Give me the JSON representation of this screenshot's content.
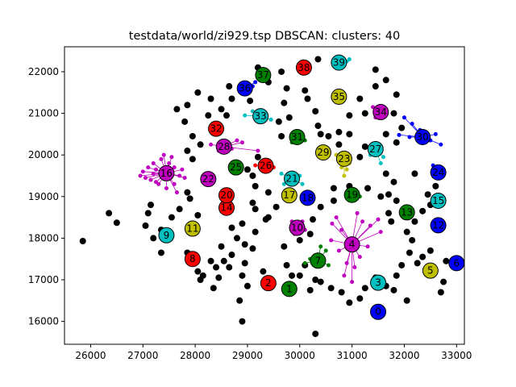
{
  "chart_data": {
    "type": "scatter",
    "title": "testdata/world/zi929.tsp DBSCAN: clusters: 40",
    "xlabel": "",
    "ylabel": "",
    "xlim": [
      25500,
      33150
    ],
    "ylim": [
      15450,
      22600
    ],
    "x_ticks": [
      26000,
      27000,
      28000,
      29000,
      30000,
      31000,
      32000,
      33000
    ],
    "y_ticks": [
      16000,
      17000,
      18000,
      19000,
      20000,
      21000,
      22000
    ],
    "grid": false,
    "legend": "none",
    "colors": {
      "noise": "#000000",
      "palette": [
        "#0000ff",
        "#008000",
        "#ff0000",
        "#00bfbf",
        "#bf00bf",
        "#bfbf00"
      ]
    },
    "clusters": [
      {
        "id": 0,
        "x": 31500,
        "y": 16230,
        "color": "#0000ff"
      },
      {
        "id": 1,
        "x": 29800,
        "y": 16780,
        "color": "#008000"
      },
      {
        "id": 2,
        "x": 29400,
        "y": 16920,
        "color": "#ff0000"
      },
      {
        "id": 3,
        "x": 31500,
        "y": 16930,
        "color": "#00bfbf"
      },
      {
        "id": 4,
        "x": 31000,
        "y": 17850,
        "color": "#bf00bf",
        "members": [
          [
            30620,
            18350
          ],
          [
            30700,
            18500
          ],
          [
            30800,
            18200
          ],
          [
            31100,
            18600
          ],
          [
            31200,
            18400
          ],
          [
            31350,
            18300
          ],
          [
            31500,
            18450
          ],
          [
            31550,
            18150
          ],
          [
            30750,
            17700
          ],
          [
            30900,
            17400
          ],
          [
            31050,
            17300
          ],
          [
            31150,
            17550
          ],
          [
            30600,
            17950
          ],
          [
            31300,
            17800
          ],
          [
            30850,
            17100
          ],
          [
            31000,
            16950
          ]
        ]
      },
      {
        "id": 5,
        "x": 32500,
        "y": 17220,
        "color": "#bfbf00",
        "members": [
          [
            32550,
            17280
          ],
          [
            32600,
            17200
          ],
          [
            32420,
            17150
          ]
        ]
      },
      {
        "id": 6,
        "x": 33000,
        "y": 17400,
        "color": "#0000ff"
      },
      {
        "id": 7,
        "x": 30350,
        "y": 17460,
        "color": "#008000",
        "members": [
          [
            30200,
            17500
          ],
          [
            30500,
            17700
          ],
          [
            30550,
            17350
          ],
          [
            30400,
            17800
          ],
          [
            30100,
            17400
          ]
        ]
      },
      {
        "id": 8,
        "x": 27950,
        "y": 17500,
        "color": "#ff0000"
      },
      {
        "id": 9,
        "x": 27450,
        "y": 18070,
        "color": "#00bfbf"
      },
      {
        "id": 10,
        "x": 29950,
        "y": 18250,
        "color": "#bf00bf",
        "members": [
          [
            29850,
            18400
          ],
          [
            30100,
            18200
          ],
          [
            29900,
            18100
          ],
          [
            30050,
            18400
          ]
        ]
      },
      {
        "id": 11,
        "x": 27950,
        "y": 18230,
        "color": "#bfbf00"
      },
      {
        "id": 12,
        "x": 32650,
        "y": 18310,
        "color": "#0000ff"
      },
      {
        "id": 13,
        "x": 32050,
        "y": 18620,
        "color": "#008000"
      },
      {
        "id": 14,
        "x": 28600,
        "y": 18730,
        "color": "#ff0000"
      },
      {
        "id": 15,
        "x": 32650,
        "y": 18900,
        "color": "#00bfbf"
      },
      {
        "id": 16,
        "x": 27450,
        "y": 19560,
        "color": "#bf00bf",
        "members": [
          [
            27000,
            19600
          ],
          [
            26950,
            19500
          ],
          [
            27100,
            19700
          ],
          [
            27150,
            19400
          ],
          [
            27200,
            19800
          ],
          [
            27250,
            19650
          ],
          [
            27300,
            19300
          ],
          [
            27350,
            19900
          ],
          [
            27400,
            20000
          ],
          [
            27550,
            19950
          ],
          [
            27600,
            19300
          ],
          [
            27650,
            19100
          ],
          [
            27700,
            19500
          ],
          [
            27750,
            19650
          ],
          [
            27800,
            19450
          ],
          [
            27200,
            19550
          ],
          [
            27050,
            19450
          ],
          [
            27500,
            19800
          ],
          [
            27450,
            19200
          ],
          [
            27350,
            19600
          ],
          [
            27600,
            19700
          ],
          [
            27250,
            19350
          ]
        ]
      },
      {
        "id": 17,
        "x": 29800,
        "y": 19030,
        "color": "#bfbf00"
      },
      {
        "id": 18,
        "x": 30150,
        "y": 18970,
        "color": "#0000ff"
      },
      {
        "id": 19,
        "x": 31000,
        "y": 19040,
        "color": "#008000",
        "members": [
          [
            31150,
            19000
          ]
        ]
      },
      {
        "id": 20,
        "x": 28600,
        "y": 19030,
        "color": "#ff0000"
      },
      {
        "id": 21,
        "x": 29850,
        "y": 19430,
        "color": "#00bfbf",
        "members": [
          [
            29700,
            19300
          ],
          [
            30000,
            19500
          ],
          [
            29650,
            19550
          ],
          [
            30050,
            19300
          ]
        ]
      },
      {
        "id": 22,
        "x": 28250,
        "y": 19420,
        "color": "#bf00bf"
      },
      {
        "id": 23,
        "x": 30850,
        "y": 19910,
        "color": "#bfbf00",
        "members": [
          [
            30800,
            19700
          ],
          [
            30900,
            19650
          ],
          [
            30950,
            19800
          ],
          [
            30850,
            19500
          ],
          [
            30700,
            20000
          ]
        ]
      },
      {
        "id": 24,
        "x": 32650,
        "y": 19580,
        "color": "#0000ff",
        "members": [
          [
            32750,
            19650
          ],
          [
            32550,
            19750
          ]
        ]
      },
      {
        "id": 25,
        "x": 28780,
        "y": 19700,
        "color": "#008000"
      },
      {
        "id": 26,
        "x": 29350,
        "y": 19740,
        "color": "#ff0000",
        "members": [
          [
            29150,
            19750
          ],
          [
            29500,
            19700
          ]
        ]
      },
      {
        "id": 27,
        "x": 31450,
        "y": 20140,
        "color": "#00bfbf",
        "members": [
          [
            31600,
            19950
          ],
          [
            31550,
            19800
          ],
          [
            31350,
            20000
          ]
        ]
      },
      {
        "id": 28,
        "x": 28550,
        "y": 20200,
        "color": "#bf00bf",
        "members": [
          [
            28300,
            20250
          ],
          [
            28700,
            20150
          ],
          [
            28900,
            20300
          ],
          [
            28450,
            20100
          ],
          [
            28800,
            20350
          ],
          [
            29200,
            20100
          ]
        ]
      },
      {
        "id": 29,
        "x": 30450,
        "y": 20060,
        "color": "#bfbf00"
      },
      {
        "id": 30,
        "x": 32350,
        "y": 20430,
        "color": "#0000ff",
        "members": [
          [
            31900,
            20480
          ],
          [
            32100,
            20430
          ],
          [
            32250,
            20400
          ],
          [
            32500,
            20350
          ],
          [
            32700,
            20250
          ],
          [
            32600,
            20500
          ],
          [
            32300,
            20600
          ],
          [
            32150,
            20750
          ],
          [
            32000,
            20900
          ]
        ]
      },
      {
        "id": 31,
        "x": 29950,
        "y": 20430,
        "color": "#008000",
        "members": [
          [
            29850,
            20300
          ],
          [
            30100,
            20350
          ]
        ]
      },
      {
        "id": 32,
        "x": 28400,
        "y": 20630,
        "color": "#ff0000"
      },
      {
        "id": 33,
        "x": 29250,
        "y": 20930,
        "color": "#00bfbf",
        "members": [
          [
            28950,
            20950
          ],
          [
            29100,
            21050
          ],
          [
            29450,
            20850
          ],
          [
            29350,
            21000
          ]
        ]
      },
      {
        "id": 34,
        "x": 31550,
        "y": 21030,
        "color": "#bf00bf",
        "members": [
          [
            31450,
            20900
          ],
          [
            31650,
            21100
          ],
          [
            31400,
            21150
          ]
        ]
      },
      {
        "id": 35,
        "x": 30750,
        "y": 21400,
        "color": "#bfbf00"
      },
      {
        "id": 36,
        "x": 28950,
        "y": 21600,
        "color": "#0000ff",
        "members": [
          [
            29100,
            21650
          ],
          [
            29150,
            21750
          ]
        ]
      },
      {
        "id": 37,
        "x": 29300,
        "y": 21920,
        "color": "#008000"
      },
      {
        "id": 38,
        "x": 30080,
        "y": 22100,
        "color": "#ff0000"
      },
      {
        "id": 39,
        "x": 30750,
        "y": 22220,
        "color": "#00bfbf",
        "members": [
          [
            30900,
            22250
          ],
          [
            30950,
            22300
          ]
        ]
      }
    ],
    "noise": [
      [
        25850,
        17930
      ],
      [
        26350,
        18600
      ],
      [
        26500,
        18370
      ],
      [
        27050,
        18300
      ],
      [
        27100,
        18600
      ],
      [
        27150,
        18800
      ],
      [
        27200,
        18000
      ],
      [
        27350,
        18200
      ],
      [
        27350,
        17650
      ],
      [
        27550,
        18500
      ],
      [
        27850,
        17650
      ],
      [
        27700,
        18700
      ],
      [
        27900,
        18950
      ],
      [
        27850,
        19100
      ],
      [
        28050,
        18550
      ],
      [
        27950,
        19900
      ],
      [
        28000,
        17450
      ],
      [
        28050,
        17200
      ],
      [
        28100,
        17000
      ],
      [
        28150,
        17100
      ],
      [
        28300,
        17450
      ],
      [
        28350,
        16800
      ],
      [
        28400,
        17300
      ],
      [
        28450,
        17050
      ],
      [
        28500,
        17800
      ],
      [
        28550,
        17450
      ],
      [
        28650,
        17300
      ],
      [
        28700,
        17600
      ],
      [
        28850,
        16500
      ],
      [
        28900,
        17100
      ],
      [
        28900,
        16000
      ],
      [
        28950,
        17850
      ],
      [
        28950,
        17400
      ],
      [
        29000,
        16850
      ],
      [
        28800,
        18000
      ],
      [
        28700,
        18250
      ],
      [
        28900,
        18350
      ],
      [
        29150,
        18150
      ],
      [
        29350,
        18450
      ],
      [
        29100,
        17750
      ],
      [
        29300,
        17200
      ],
      [
        28100,
        20250
      ],
      [
        27850,
        20100
      ],
      [
        27950,
        20450
      ],
      [
        27800,
        20800
      ],
      [
        27650,
        21100
      ],
      [
        27850,
        21200
      ],
      [
        28050,
        21500
      ],
      [
        28250,
        20950
      ],
      [
        28600,
        20950
      ],
      [
        28500,
        21100
      ],
      [
        28300,
        21350
      ],
      [
        28650,
        21650
      ],
      [
        28700,
        21350
      ],
      [
        29050,
        21300
      ],
      [
        29200,
        22100
      ],
      [
        29400,
        21750
      ],
      [
        29650,
        22000
      ],
      [
        29750,
        21600
      ],
      [
        29700,
        21250
      ],
      [
        29600,
        20800
      ],
      [
        29800,
        20900
      ],
      [
        29650,
        20450
      ],
      [
        29200,
        19950
      ],
      [
        29000,
        19650
      ],
      [
        29100,
        19500
      ],
      [
        29150,
        19250
      ],
      [
        29100,
        18850
      ],
      [
        29150,
        18700
      ],
      [
        29400,
        19100
      ],
      [
        29550,
        18750
      ],
      [
        29400,
        18500
      ],
      [
        30350,
        22300
      ],
      [
        30100,
        21550
      ],
      [
        30150,
        21350
      ],
      [
        30300,
        21050
      ],
      [
        30350,
        20700
      ],
      [
        30400,
        20500
      ],
      [
        30550,
        20450
      ],
      [
        30750,
        20550
      ],
      [
        30950,
        20500
      ],
      [
        30750,
        20250
      ],
      [
        30950,
        20950
      ],
      [
        31150,
        21350
      ],
      [
        31250,
        21000
      ],
      [
        31450,
        21650
      ],
      [
        31450,
        22050
      ],
      [
        31650,
        21800
      ],
      [
        31850,
        21450
      ],
      [
        31800,
        21000
      ],
      [
        31650,
        20500
      ],
      [
        31950,
        20650
      ],
      [
        31850,
        20300
      ],
      [
        31250,
        20200
      ],
      [
        31150,
        19950
      ],
      [
        31650,
        19550
      ],
      [
        31800,
        19350
      ],
      [
        31700,
        19050
      ],
      [
        31850,
        18900
      ],
      [
        31700,
        18600
      ],
      [
        31750,
        18400
      ],
      [
        31550,
        19000
      ],
      [
        31300,
        19200
      ],
      [
        30950,
        19250
      ],
      [
        30650,
        19200
      ],
      [
        30650,
        18900
      ],
      [
        30400,
        18750
      ],
      [
        30250,
        18450
      ],
      [
        30200,
        18100
      ],
      [
        30000,
        17950
      ],
      [
        29700,
        17800
      ],
      [
        29750,
        17350
      ],
      [
        29850,
        17100
      ],
      [
        30000,
        17100
      ],
      [
        30100,
        17350
      ],
      [
        30300,
        17000
      ],
      [
        30400,
        16950
      ],
      [
        30200,
        16750
      ],
      [
        30600,
        16800
      ],
      [
        30800,
        16700
      ],
      [
        31150,
        16550
      ],
      [
        31250,
        16800
      ],
      [
        30950,
        16450
      ],
      [
        30300,
        15700
      ],
      [
        31650,
        16850
      ],
      [
        31800,
        16750
      ],
      [
        32050,
        16500
      ],
      [
        31950,
        17350
      ],
      [
        32100,
        17650
      ],
      [
        32250,
        17400
      ],
      [
        32350,
        17550
      ],
      [
        32500,
        17700
      ],
      [
        32800,
        17450
      ],
      [
        32750,
        16950
      ],
      [
        32700,
        16700
      ],
      [
        32150,
        17950
      ],
      [
        32050,
        18150
      ],
      [
        32200,
        18400
      ],
      [
        32350,
        18650
      ],
      [
        32500,
        18800
      ],
      [
        32450,
        19050
      ],
      [
        32600,
        19250
      ],
      [
        32200,
        19550
      ],
      [
        31450,
        17050
      ],
      [
        31850,
        17100
      ]
    ]
  }
}
